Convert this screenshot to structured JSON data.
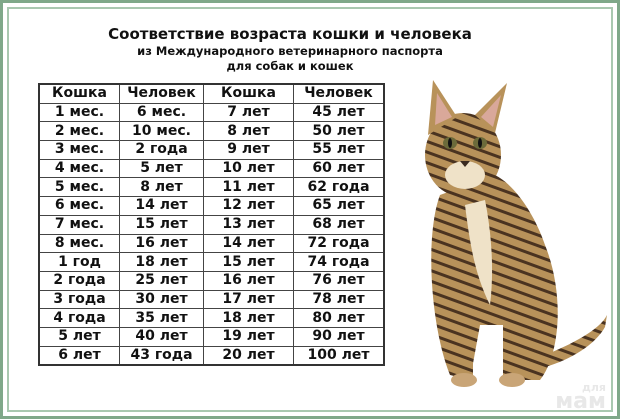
{
  "header": {
    "title": "Соответствие возраста кошки и человека",
    "subtitle_line1": "из Международного ветеринарного паспорта",
    "subtitle_line2": "для собак и кошек"
  },
  "table": {
    "headers": [
      "Кошка",
      "Человек",
      "Кошка",
      "Человек"
    ],
    "rows": [
      [
        "1 мес.",
        "6 мес.",
        "7 лет",
        "45 лет"
      ],
      [
        "2 мес.",
        "10 мес.",
        "8 лет",
        "50 лет"
      ],
      [
        "3 мес.",
        "2 года",
        "9 лет",
        "55 лет"
      ],
      [
        "4 мес.",
        "5 лет",
        "10 лет",
        "60 лет"
      ],
      [
        "5 мес.",
        "8 лет",
        "11 лет",
        "62 года"
      ],
      [
        "6 мес.",
        "14 лет",
        "12 лет",
        "65 лет"
      ],
      [
        "7 мес.",
        "15 лет",
        "13 лет",
        "68 лет"
      ],
      [
        "8 мес.",
        "16 лет",
        "14 лет",
        "72 года"
      ],
      [
        "1 год",
        "18 лет",
        "15 лет",
        "74 года"
      ],
      [
        "2 года",
        "25 лет",
        "16 лет",
        "76 лет"
      ],
      [
        "3 года",
        "30 лет",
        "17 лет",
        "78 лет"
      ],
      [
        "4 года",
        "35 лет",
        "18 лет",
        "80 лет"
      ],
      [
        "5 лет",
        "40 лет",
        "19 лет",
        "90 лет"
      ],
      [
        "6 лет",
        "43 года",
        "20 лет",
        "100 лет"
      ]
    ]
  },
  "watermark": {
    "line1": "для",
    "line2": "мам"
  },
  "image": {
    "subject": "cat-photo"
  },
  "colors": {
    "frame": "#7fa889",
    "cat_fur": "#b08a55"
  }
}
